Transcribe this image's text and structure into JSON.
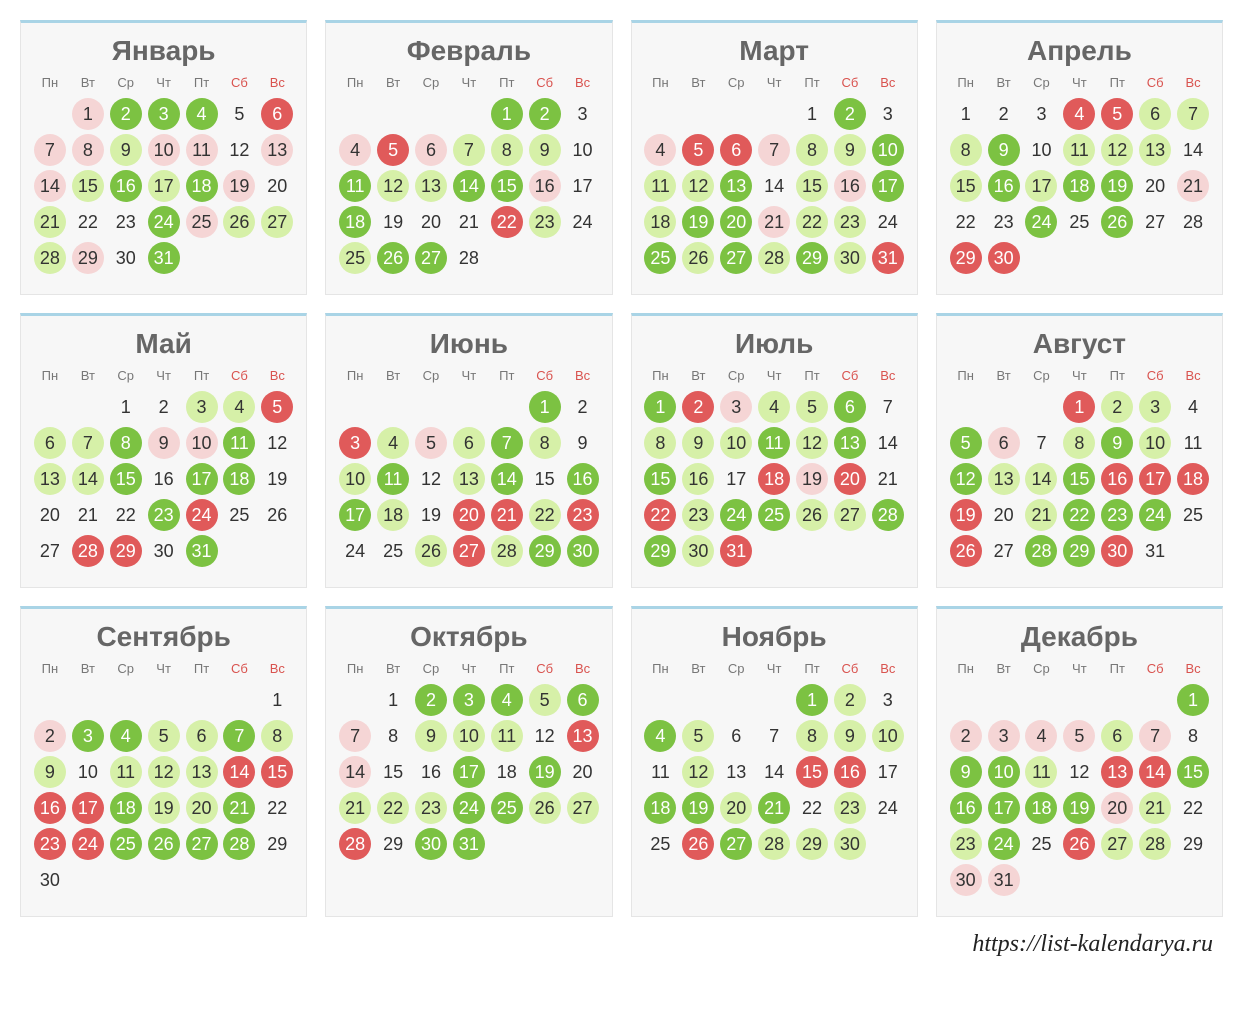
{
  "colors": {
    "g1": "#d6f0a8",
    "g2": "#7cc242",
    "r1": "#f5d5d5",
    "r2": "#e05a5a",
    "title": "#666666",
    "weekday": "#777777",
    "weekend": "#d9534f",
    "border_top": "#a9d4e6",
    "bg": "#f7f7f7"
  },
  "footer": "https://list-kalendarya.ru",
  "dow": [
    "Пн",
    "Вт",
    "Ср",
    "Чт",
    "Пт",
    "Сб",
    "Вс"
  ],
  "months": [
    {
      "name": "Январь",
      "start": 1,
      "days": 31,
      "c": {
        "1": "r1",
        "2": "g2",
        "3": "g2",
        "4": "g2",
        "6": "r2",
        "7": "r1",
        "8": "r1",
        "9": "g1",
        "10": "r1",
        "11": "r1",
        "13": "r1",
        "14": "r1",
        "15": "g1",
        "16": "g2",
        "17": "g1",
        "18": "g2",
        "19": "r1",
        "21": "g1",
        "24": "g2",
        "25": "r1",
        "26": "g1",
        "27": "g1",
        "28": "g1",
        "29": "r1",
        "31": "g2"
      }
    },
    {
      "name": "Февраль",
      "start": 4,
      "days": 28,
      "c": {
        "1": "g2",
        "2": "g2",
        "4": "r1",
        "5": "r2",
        "6": "r1",
        "7": "g1",
        "8": "g1",
        "9": "g1",
        "11": "g2",
        "12": "g1",
        "13": "g1",
        "14": "g2",
        "15": "g2",
        "16": "r1",
        "18": "g2",
        "22": "r2",
        "23": "g1",
        "25": "g1",
        "26": "g2",
        "27": "g2"
      }
    },
    {
      "name": "Март",
      "start": 4,
      "days": 31,
      "c": {
        "2": "g2",
        "4": "r1",
        "5": "r2",
        "6": "r2",
        "7": "r1",
        "8": "g1",
        "9": "g1",
        "10": "g2",
        "11": "g1",
        "12": "g1",
        "13": "g2",
        "15": "g1",
        "16": "r1",
        "17": "g2",
        "18": "g1",
        "19": "g2",
        "20": "g2",
        "21": "r1",
        "22": "g1",
        "23": "g1",
        "25": "g2",
        "26": "g1",
        "27": "g2",
        "28": "g1",
        "29": "g2",
        "30": "g1",
        "31": "r2"
      }
    },
    {
      "name": "Апрель",
      "start": 0,
      "days": 30,
      "c": {
        "4": "r2",
        "5": "r2",
        "6": "g1",
        "7": "g1",
        "8": "g1",
        "9": "g2",
        "11": "g1",
        "12": "g1",
        "13": "g1",
        "15": "g1",
        "16": "g2",
        "17": "g1",
        "18": "g2",
        "19": "g2",
        "21": "r1",
        "24": "g2",
        "26": "g2",
        "29": "r2",
        "30": "r2"
      }
    },
    {
      "name": "Май",
      "start": 2,
      "days": 31,
      "c": {
        "3": "g1",
        "4": "g1",
        "5": "r2",
        "6": "g1",
        "7": "g1",
        "8": "g2",
        "9": "r1",
        "10": "r1",
        "11": "g2",
        "13": "g1",
        "14": "g1",
        "15": "g2",
        "17": "g2",
        "18": "g2",
        "23": "g2",
        "24": "r2",
        "28": "r2",
        "29": "r2",
        "31": "g2"
      }
    },
    {
      "name": "Июнь",
      "start": 5,
      "days": 30,
      "c": {
        "1": "g2",
        "3": "r2",
        "4": "g1",
        "5": "r1",
        "6": "g1",
        "7": "g2",
        "8": "g1",
        "10": "g1",
        "11": "g2",
        "13": "g1",
        "14": "g2",
        "16": "g2",
        "17": "g2",
        "18": "g1",
        "20": "r2",
        "21": "r2",
        "22": "g1",
        "23": "r2",
        "26": "g1",
        "27": "r2",
        "28": "g1",
        "29": "g2",
        "30": "g2"
      }
    },
    {
      "name": "Июль",
      "start": 0,
      "days": 31,
      "c": {
        "1": "g2",
        "2": "r2",
        "3": "r1",
        "4": "g1",
        "5": "g1",
        "6": "g2",
        "8": "g1",
        "9": "g1",
        "10": "g1",
        "11": "g2",
        "12": "g1",
        "13": "g2",
        "15": "g2",
        "16": "g1",
        "18": "r2",
        "19": "r1",
        "20": "r2",
        "22": "r2",
        "23": "g1",
        "24": "g2",
        "25": "g2",
        "26": "g1",
        "27": "g1",
        "28": "g2",
        "29": "g2",
        "30": "g1",
        "31": "r2"
      }
    },
    {
      "name": "Август",
      "start": 3,
      "days": 31,
      "c": {
        "1": "r2",
        "2": "g1",
        "3": "g1",
        "5": "g2",
        "6": "r1",
        "8": "g1",
        "9": "g2",
        "10": "g1",
        "12": "g2",
        "13": "g1",
        "14": "g1",
        "15": "g2",
        "16": "r2",
        "17": "r2",
        "18": "r2",
        "19": "r2",
        "21": "g1",
        "22": "g2",
        "23": "g2",
        "24": "g2",
        "26": "r2",
        "28": "g2",
        "29": "g2",
        "30": "r2"
      }
    },
    {
      "name": "Сентябрь",
      "start": 6,
      "days": 30,
      "c": {
        "2": "r1",
        "3": "g2",
        "4": "g2",
        "5": "g1",
        "6": "g1",
        "7": "g2",
        "8": "g1",
        "9": "g1",
        "11": "g1",
        "12": "g1",
        "13": "g1",
        "14": "r2",
        "15": "r2",
        "16": "r2",
        "17": "r2",
        "18": "g2",
        "19": "g1",
        "20": "g1",
        "21": "g2",
        "23": "r2",
        "24": "r2",
        "25": "g2",
        "26": "g2",
        "27": "g2",
        "28": "g2"
      }
    },
    {
      "name": "Октябрь",
      "start": 1,
      "days": 31,
      "c": {
        "2": "g2",
        "3": "g2",
        "4": "g2",
        "5": "g1",
        "6": "g2",
        "7": "r1",
        "9": "g1",
        "10": "g1",
        "11": "g1",
        "13": "r2",
        "14": "r1",
        "17": "g2",
        "19": "g2",
        "21": "g1",
        "22": "g1",
        "23": "g1",
        "24": "g2",
        "25": "g2",
        "26": "g1",
        "27": "g1",
        "28": "r2",
        "30": "g2",
        "31": "g2"
      }
    },
    {
      "name": "Ноябрь",
      "start": 4,
      "days": 30,
      "c": {
        "1": "g2",
        "2": "g1",
        "4": "g2",
        "5": "g1",
        "8": "g1",
        "9": "g1",
        "10": "g1",
        "12": "g1",
        "15": "r2",
        "16": "r2",
        "18": "g2",
        "19": "g2",
        "20": "g1",
        "21": "g2",
        "23": "g1",
        "26": "r2",
        "27": "g2",
        "28": "g1",
        "29": "g1",
        "30": "g1"
      }
    },
    {
      "name": "Декабрь",
      "start": 6,
      "days": 31,
      "c": {
        "1": "g2",
        "2": "r1",
        "3": "r1",
        "4": "r1",
        "5": "r1",
        "6": "g1",
        "7": "r1",
        "9": "g2",
        "10": "g2",
        "11": "g1",
        "13": "r2",
        "14": "r2",
        "15": "g2",
        "16": "g2",
        "17": "g2",
        "18": "g2",
        "19": "g2",
        "20": "r1",
        "21": "g1",
        "23": "g1",
        "24": "g2",
        "26": "r2",
        "27": "g1",
        "28": "g1",
        "30": "r1",
        "31": "r1"
      }
    }
  ]
}
